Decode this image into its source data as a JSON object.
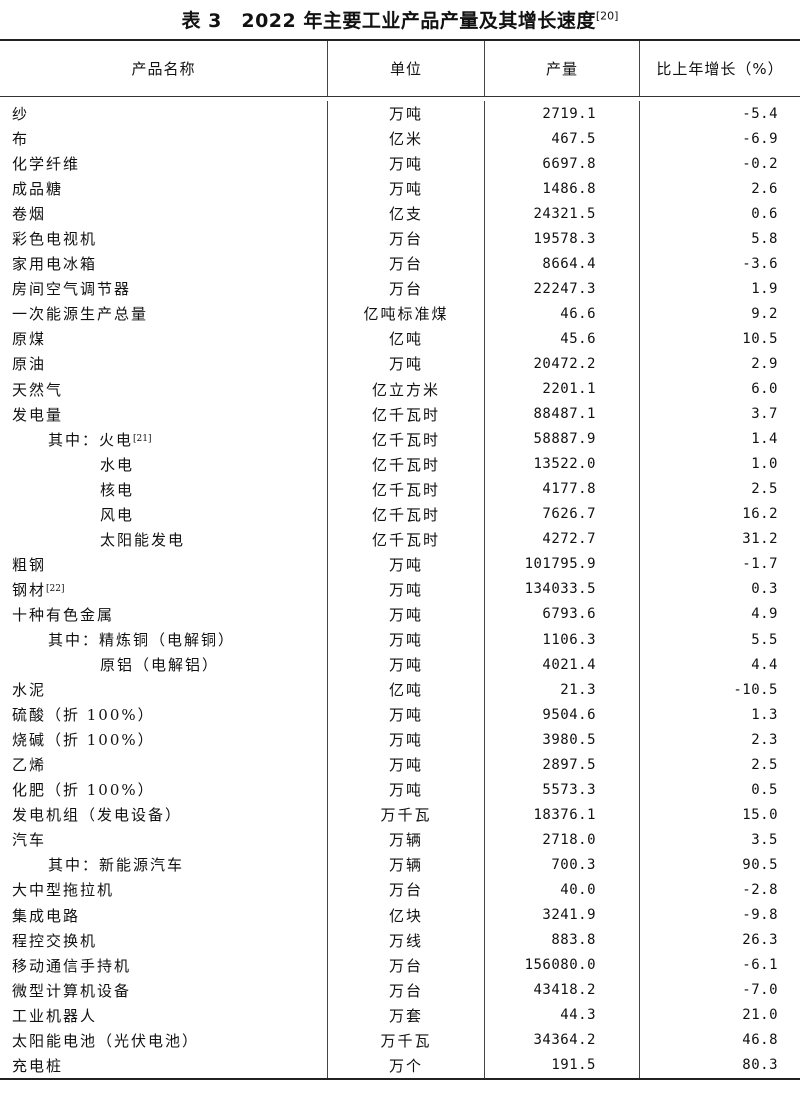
{
  "title": {
    "text": "表 3　2022 年主要工业产品产量及其增长速度",
    "note": "[20]"
  },
  "headers": [
    "产品名称",
    "单位",
    "产量",
    "比上年增长（%）"
  ],
  "rows": [
    {
      "name": "纱",
      "unit": "万吨",
      "output": "2719.1",
      "growth": "-5.4"
    },
    {
      "name": "布",
      "unit": "亿米",
      "output": "467.5",
      "growth": "-6.9"
    },
    {
      "name": "化学纤维",
      "unit": "万吨",
      "output": "6697.8",
      "growth": "-0.2"
    },
    {
      "name": "成品糖",
      "unit": "万吨",
      "output": "1486.8",
      "growth": "2.6"
    },
    {
      "name": "卷烟",
      "unit": "亿支",
      "output": "24321.5",
      "growth": "0.6"
    },
    {
      "name": "彩色电视机",
      "unit": "万台",
      "output": "19578.3",
      "growth": "5.8"
    },
    {
      "name": "家用电冰箱",
      "unit": "万台",
      "output": "8664.4",
      "growth": "-3.6"
    },
    {
      "name": "房间空气调节器",
      "unit": "万台",
      "output": "22247.3",
      "growth": "1.9"
    },
    {
      "name": "一次能源生产总量",
      "unit": "亿吨标准煤",
      "output": "46.6",
      "growth": "9.2"
    },
    {
      "name": "原煤",
      "unit": "亿吨",
      "output": "45.6",
      "growth": "10.5"
    },
    {
      "name": "原油",
      "unit": "万吨",
      "output": "20472.2",
      "growth": "2.9"
    },
    {
      "name": "天然气",
      "unit": "亿立方米",
      "output": "2201.1",
      "growth": "6.0"
    },
    {
      "name": "发电量",
      "unit": "亿千瓦时",
      "output": "88487.1",
      "growth": "3.7"
    },
    {
      "name": "其中：火电",
      "note": "[21]",
      "indent": 1,
      "unit": "亿千瓦时",
      "output": "58887.9",
      "growth": "1.4"
    },
    {
      "name": "水电",
      "indent": 2,
      "unit": "亿千瓦时",
      "output": "13522.0",
      "growth": "1.0"
    },
    {
      "name": "核电",
      "indent": 2,
      "unit": "亿千瓦时",
      "output": "4177.8",
      "growth": "2.5"
    },
    {
      "name": "风电",
      "indent": 2,
      "unit": "亿千瓦时",
      "output": "7626.7",
      "growth": "16.2"
    },
    {
      "name": "太阳能发电",
      "indent": 2,
      "unit": "亿千瓦时",
      "output": "4272.7",
      "growth": "31.2"
    },
    {
      "name": "粗钢",
      "unit": "万吨",
      "output": "101795.9",
      "growth": "-1.7"
    },
    {
      "name": "钢材",
      "note": "[22]",
      "unit": "万吨",
      "output": "134033.5",
      "growth": "0.3"
    },
    {
      "name": "十种有色金属",
      "unit": "万吨",
      "output": "6793.6",
      "growth": "4.9"
    },
    {
      "name": "其中：精炼铜（电解铜）",
      "indent": 1,
      "unit": "万吨",
      "output": "1106.3",
      "growth": "5.5"
    },
    {
      "name": "原铝（电解铝）",
      "indent": 2,
      "unit": "万吨",
      "output": "4021.4",
      "growth": "4.4"
    },
    {
      "name": "水泥",
      "unit": "亿吨",
      "output": "21.3",
      "growth": "-10.5"
    },
    {
      "name": "硫酸（折 100%）",
      "unit": "万吨",
      "output": "9504.6",
      "growth": "1.3"
    },
    {
      "name": "烧碱（折 100%）",
      "unit": "万吨",
      "output": "3980.5",
      "growth": "2.3"
    },
    {
      "name": "乙烯",
      "unit": "万吨",
      "output": "2897.5",
      "growth": "2.5"
    },
    {
      "name": "化肥（折 100%）",
      "unit": "万吨",
      "output": "5573.3",
      "growth": "0.5"
    },
    {
      "name": "发电机组（发电设备）",
      "unit": "万千瓦",
      "output": "18376.1",
      "growth": "15.0"
    },
    {
      "name": "汽车",
      "unit": "万辆",
      "output": "2718.0",
      "growth": "3.5"
    },
    {
      "name": "其中：新能源汽车",
      "indent": 1,
      "unit": "万辆",
      "output": "700.3",
      "growth": "90.5"
    },
    {
      "name": "大中型拖拉机",
      "unit": "万台",
      "output": "40.0",
      "growth": "-2.8"
    },
    {
      "name": "集成电路",
      "unit": "亿块",
      "output": "3241.9",
      "growth": "-9.8"
    },
    {
      "name": "程控交换机",
      "unit": "万线",
      "output": "883.8",
      "growth": "26.3"
    },
    {
      "name": "移动通信手持机",
      "unit": "万台",
      "output": "156080.0",
      "growth": "-6.1"
    },
    {
      "name": "微型计算机设备",
      "unit": "万台",
      "output": "43418.2",
      "growth": "-7.0"
    },
    {
      "name": "工业机器人",
      "unit": "万套",
      "output": "44.3",
      "growth": "21.0"
    },
    {
      "name": "太阳能电池（光伏电池）",
      "unit": "万千瓦",
      "output": "34364.2",
      "growth": "46.8"
    },
    {
      "name": "充电桩",
      "unit": "万个",
      "output": "191.5",
      "growth": "80.3"
    }
  ]
}
